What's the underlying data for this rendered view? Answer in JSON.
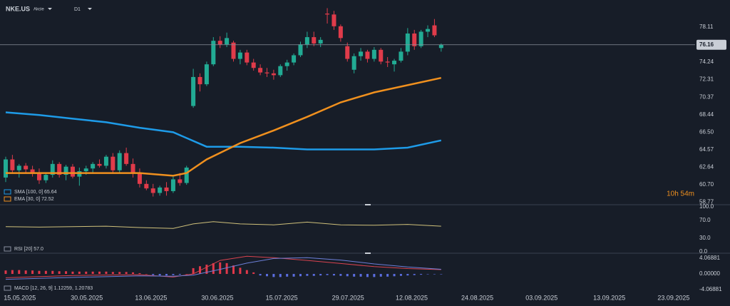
{
  "header": {
    "symbol": "NKE.US",
    "kind": "Akcie",
    "timeframe": "D1"
  },
  "countdown": "10h 54m",
  "chart_data": [
    {
      "type": "candlestick",
      "up_color": "#22ab94",
      "down_color": "#e03b4a",
      "last_price": 76.16,
      "xlim": [
        -0.85,
        102.9
      ],
      "xticks": [
        {
          "value": 2.1,
          "label": "15.05.2025"
        },
        {
          "value": 12.1,
          "label": "30.05.2025"
        },
        {
          "value": 21.7,
          "label": "13.06.2025"
        },
        {
          "value": 31.6,
          "label": "30.06.2025"
        },
        {
          "value": 41.2,
          "label": "15.07.2025"
        },
        {
          "value": 51.1,
          "label": "29.07.2025"
        },
        {
          "value": 60.6,
          "label": "12.08.2025"
        },
        {
          "value": 70.4,
          "label": "24.08.2025"
        },
        {
          "value": 80,
          "label": "03.09.2025"
        },
        {
          "value": 90.1,
          "label": "13.09.2025"
        },
        {
          "value": 99.7,
          "label": "23.09.2025"
        }
      ],
      "ylim": [
        58.5,
        81.1
      ],
      "yticks": [
        78.11,
        76.16,
        74.24,
        72.31,
        70.37,
        68.44,
        {
          "value": 66.5,
          "label": "66.50"
        },
        64.57,
        62.64,
        {
          "value": 60.7,
          "label": "60.70"
        },
        58.77
      ],
      "ohlc": [
        [
          61.5,
          63.8,
          61.0,
          63.5
        ],
        [
          63.5,
          64.0,
          62.0,
          62.3
        ],
        [
          62.3,
          63.0,
          61.5,
          62.8
        ],
        [
          62.8,
          63.1,
          62.0,
          62.4
        ],
        [
          62.4,
          62.8,
          61.6,
          62.0
        ],
        [
          62.0,
          62.5,
          60.8,
          61.2
        ],
        [
          61.2,
          62.0,
          60.9,
          61.8
        ],
        [
          61.8,
          63.4,
          61.5,
          63.0
        ],
        [
          63.0,
          63.2,
          61.5,
          61.8
        ],
        [
          61.8,
          62.9,
          61.2,
          62.7
        ],
        [
          62.7,
          63.0,
          61.4,
          61.6
        ],
        [
          61.6,
          62.6,
          60.6,
          62.2
        ],
        [
          62.2,
          62.8,
          61.8,
          62.5
        ],
        [
          62.5,
          63.2,
          62.0,
          63.0
        ],
        [
          63.0,
          63.5,
          62.6,
          62.8
        ],
        [
          62.8,
          64.0,
          62.5,
          63.8
        ],
        [
          63.8,
          64.2,
          62.0,
          62.3
        ],
        [
          62.3,
          64.5,
          62.0,
          64.2
        ],
        [
          64.2,
          64.8,
          62.8,
          63.0
        ],
        [
          63.0,
          63.6,
          61.5,
          62.0
        ],
        [
          62.0,
          62.5,
          60.4,
          60.8
        ],
        [
          60.8,
          61.2,
          60.1,
          60.3
        ],
        [
          60.3,
          60.8,
          59.4,
          59.8
        ],
        [
          59.8,
          60.6,
          59.5,
          60.4
        ],
        [
          60.4,
          61.0,
          59.5,
          60.0
        ],
        [
          60.0,
          61.6,
          59.8,
          61.3
        ],
        [
          61.3,
          62.0,
          60.6,
          60.9
        ],
        [
          60.9,
          62.8,
          60.7,
          62.6
        ],
        [
          69.4,
          73.5,
          69.2,
          72.6
        ],
        [
          72.6,
          73.0,
          71.0,
          71.8
        ],
        [
          71.8,
          74.3,
          71.6,
          74.0
        ],
        [
          74.0,
          77.0,
          73.8,
          76.6
        ],
        [
          76.6,
          77.1,
          75.8,
          76.2
        ],
        [
          76.2,
          77.5,
          75.9,
          76.9
        ],
        [
          76.4,
          76.6,
          74.3,
          74.6
        ],
        [
          74.6,
          75.6,
          74.0,
          75.3
        ],
        [
          75.3,
          75.6,
          73.9,
          74.2
        ],
        [
          74.2,
          74.6,
          73.3,
          73.6
        ],
        [
          73.6,
          74.0,
          72.8,
          73.1
        ],
        [
          73.1,
          73.6,
          72.6,
          73.0
        ],
        [
          73.0,
          73.4,
          72.3,
          72.8
        ],
        [
          72.8,
          74.0,
          72.6,
          73.8
        ],
        [
          73.8,
          74.5,
          73.3,
          74.2
        ],
        [
          74.2,
          75.2,
          73.9,
          75.0
        ],
        [
          75.0,
          76.5,
          74.8,
          76.2
        ],
        [
          76.2,
          77.6,
          75.8,
          77.0
        ],
        [
          77.0,
          77.6,
          76.0,
          76.3
        ],
        [
          76.3,
          77.0,
          75.9,
          76.7
        ],
        [
          79.6,
          80.2,
          78.5,
          79.5
        ],
        [
          79.5,
          79.9,
          77.8,
          78.2
        ],
        [
          78.2,
          78.4,
          76.5,
          76.9
        ],
        [
          76.0,
          76.4,
          74.3,
          74.6
        ],
        [
          73.4,
          75.2,
          73.0,
          74.9
        ],
        [
          74.9,
          75.8,
          74.4,
          75.4
        ],
        [
          75.4,
          75.6,
          74.2,
          74.6
        ],
        [
          74.6,
          75.9,
          74.3,
          75.6
        ],
        [
          75.6,
          75.8,
          74.0,
          74.3
        ],
        [
          74.3,
          74.8,
          73.7,
          74.2
        ],
        [
          74.0,
          74.6,
          73.2,
          74.4
        ],
        [
          74.4,
          75.8,
          74.2,
          75.4
        ],
        [
          75.4,
          78.0,
          75.0,
          77.4
        ],
        [
          77.4,
          77.8,
          75.6,
          76.0
        ],
        [
          76.0,
          77.8,
          75.8,
          77.6
        ],
        [
          77.6,
          78.3,
          77.0,
          77.9
        ],
        [
          78.3,
          79.0,
          77.0,
          77.2
        ],
        [
          75.8,
          76.3,
          75.4,
          76.16
        ]
      ],
      "series": [
        {
          "name": "SMA [100, 0] 65.64",
          "color": "#1e9be8",
          "x": [
            0,
            5,
            10,
            15,
            20,
            25,
            30,
            35,
            40,
            45,
            50,
            55,
            60,
            65
          ],
          "values": [
            68.7,
            68.4,
            68.0,
            67.6,
            67.0,
            66.5,
            64.9,
            64.9,
            64.8,
            64.6,
            64.6,
            64.6,
            64.8,
            65.6
          ]
        },
        {
          "name": "EMA [30, 0] 72.52",
          "color": "#f0901e",
          "x": [
            0,
            5,
            10,
            15,
            20,
            25,
            27,
            30,
            35,
            40,
            45,
            50,
            55,
            60,
            65
          ],
          "values": [
            62.0,
            62.0,
            62.0,
            62.0,
            62.0,
            61.7,
            62.0,
            63.5,
            65.3,
            66.7,
            68.2,
            69.8,
            70.9,
            71.7,
            72.5
          ]
        }
      ]
    },
    {
      "type": "line",
      "ylim": [
        0,
        100
      ],
      "yticks": [
        {
          "value": 100,
          "label": "100.0"
        },
        {
          "value": 70,
          "label": "70.0"
        },
        {
          "value": 30,
          "label": "30.0"
        },
        {
          "value": 0,
          "label": "0.0"
        }
      ],
      "series": [
        {
          "name": "RSI [20] 57.0",
          "color": "#cfc07a",
          "x": [
            0,
            5,
            10,
            15,
            20,
            25,
            28,
            31,
            35,
            40,
            45,
            50,
            55,
            60,
            65
          ],
          "values": [
            56,
            55,
            56,
            57,
            54,
            52,
            62,
            67,
            62,
            60,
            66,
            60,
            59,
            61,
            57
          ]
        }
      ]
    },
    {
      "type": "macd",
      "ylim": [
        -4.8,
        5.0
      ],
      "yticks": [
        4.06881,
        {
          "value": 0,
          "label": "0.00000"
        },
        -4.06881
      ],
      "histogram": {
        "color": "#e0384a",
        "negative_color": "#5b6ee1",
        "values": [
          0.9,
          1.0,
          1.0,
          0.9,
          0.9,
          0.8,
          0.8,
          0.8,
          0.7,
          0.7,
          0.6,
          0.6,
          0.6,
          0.6,
          0.6,
          0.6,
          0.5,
          0.5,
          0.5,
          0.4,
          0.2,
          0.0,
          -0.3,
          -0.4,
          -0.4,
          -0.3,
          -0.2,
          0.0,
          1.5,
          2.0,
          2.4,
          2.8,
          3.0,
          2.8,
          2.2,
          1.6,
          1.0,
          0.4,
          -0.4,
          -0.6,
          -0.8,
          -0.8,
          -0.7,
          -0.7,
          -0.6,
          -0.5,
          -0.5,
          -0.4,
          -0.3,
          -0.4,
          -0.5,
          -0.6,
          -0.7,
          -0.7,
          -0.8,
          -0.8,
          -0.7,
          -0.7,
          -0.6,
          -0.5,
          -0.4,
          -0.3,
          -0.2,
          -0.1,
          -0.1,
          -0.1
        ]
      },
      "series": [
        {
          "name": "MACD [12, 26, 9] 1.12259, 1.20783",
          "color": "#d9434f",
          "x": [
            0,
            10,
            20,
            25,
            28,
            32,
            36,
            40,
            45,
            50,
            55,
            60,
            65
          ],
          "values": [
            -1.0,
            -0.4,
            -0.2,
            -0.8,
            0.0,
            3.5,
            4.6,
            4.2,
            3.5,
            2.7,
            1.9,
            1.4,
            1.12
          ]
        },
        {
          "color": "#6c7fd8",
          "x": [
            0,
            10,
            20,
            25,
            28,
            32,
            36,
            40,
            45,
            50,
            55,
            60,
            65
          ],
          "values": [
            -1.4,
            -0.9,
            -0.5,
            -0.6,
            -0.3,
            1.2,
            2.8,
            4.0,
            4.2,
            3.6,
            2.6,
            1.8,
            1.21
          ]
        }
      ]
    }
  ]
}
